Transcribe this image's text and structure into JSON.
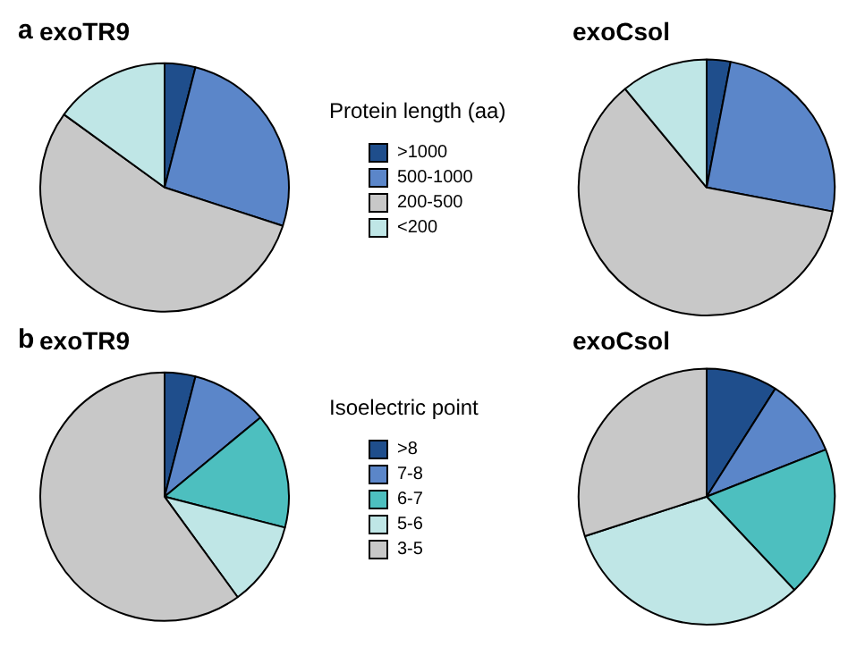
{
  "chart_data": [
    {
      "type": "pie",
      "title": "exoTR9",
      "annotations": [
        "a"
      ],
      "legend": "right",
      "legend_title": "Protein length (aa)",
      "categories": [
        ">1000",
        "500-1000",
        "200-500",
        "<200"
      ],
      "values": [
        4,
        26,
        55,
        15
      ],
      "colors": [
        "#1f4e8c",
        "#5b86c9",
        "#c8c8c8",
        "#bfe6e6"
      ]
    },
    {
      "type": "pie",
      "title": "exoCsol",
      "legend": false,
      "categories": [
        null,
        null,
        null,
        null
      ],
      "values": [
        3,
        25,
        61,
        11
      ],
      "colors": [
        "#1f4e8c",
        "#5b86c9",
        "#c8c8c8",
        "#bfe6e6"
      ]
    },
    {
      "type": "pie",
      "title": "exoTR9",
      "annotations": [
        "b"
      ],
      "legend": "right",
      "legend_title": "Isoelectric point",
      "categories": [
        ">8",
        "7-8",
        "6-7",
        "5-6",
        "3-5"
      ],
      "values": [
        4,
        10,
        15,
        11,
        60
      ],
      "colors": [
        "#1f4e8c",
        "#5b86c9",
        "#4dbfbf",
        "#bfe6e6",
        "#c8c8c8"
      ]
    },
    {
      "type": "pie",
      "title": "exoCsol",
      "legend": false,
      "categories": [
        null,
        null,
        null,
        null,
        null
      ],
      "values": [
        9,
        10,
        19,
        32,
        30
      ],
      "colors": [
        "#1f4e8c",
        "#5b86c9",
        "#4dbfbf",
        "#bfe6e6",
        "#c8c8c8"
      ]
    }
  ]
}
